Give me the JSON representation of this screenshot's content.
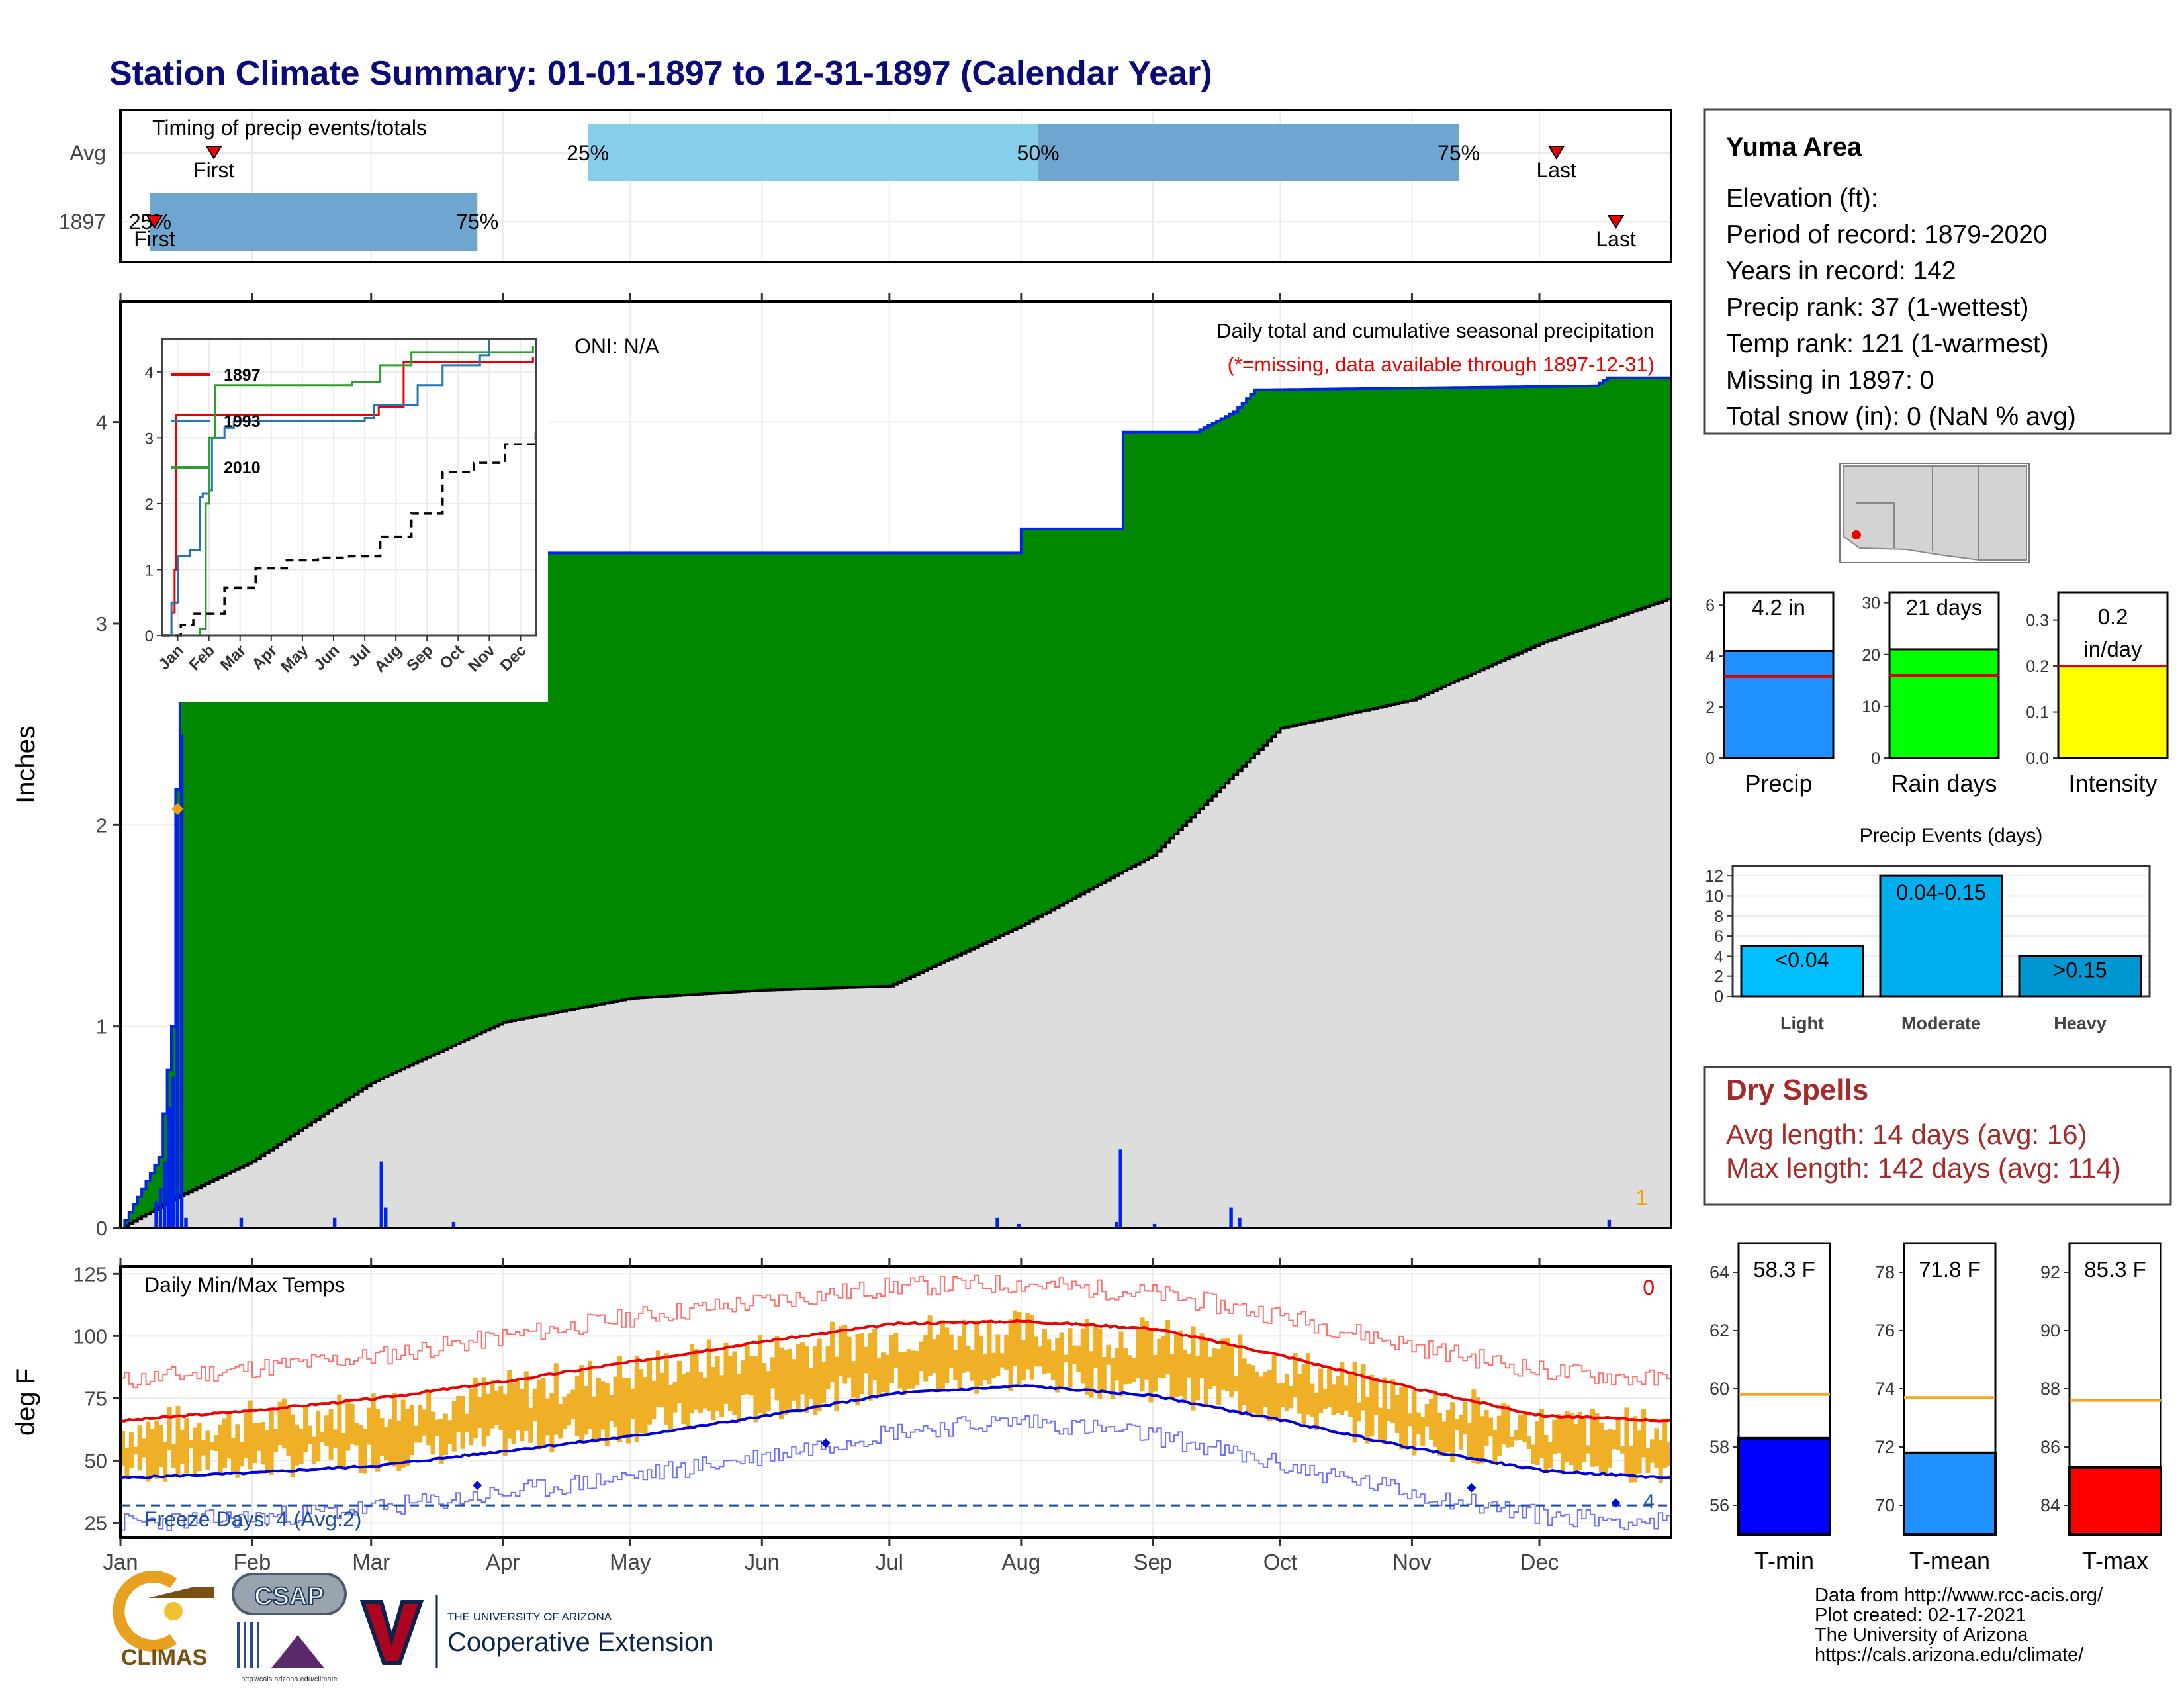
{
  "title": "Station Climate Summary: 01-01-1897 to 12-31-1897 (Calendar Year)",
  "timing": {
    "label": "Timing of precip events/totals",
    "rows": [
      "Avg",
      "1897"
    ],
    "avg": {
      "p25": "25%",
      "p50": "50%",
      "p75": "75%",
      "first": "First",
      "last": "Last"
    },
    "year": {
      "p25": "25%",
      "p50": "50%",
      "p75": "75%",
      "first": "First",
      "last": "Last"
    }
  },
  "precip_panel": {
    "ylabel": "Inches",
    "oni": "ONI: N/A",
    "caption": "Daily total and cumulative seasonal precipitation",
    "missing_note": "(*=missing, data available through 1897-12-31)",
    "count_label": "1",
    "yticks": [
      "0",
      "1",
      "2",
      "3",
      "4"
    ]
  },
  "inset": {
    "legend": [
      "1897",
      "1993",
      "2010"
    ],
    "yticks": [
      "0",
      "1",
      "2",
      "3",
      "4"
    ],
    "xticks": [
      "Jan",
      "Feb",
      "Mar",
      "Apr",
      "May",
      "Jun",
      "Jul",
      "Aug",
      "Sep",
      "Oct",
      "Nov",
      "Dec"
    ]
  },
  "temp_panel": {
    "label": "Daily Min/Max Temps",
    "ylabel": "deg F",
    "count_label": "0",
    "freeze": "Freeze Days: 4 (Avg:2)",
    "freeze_count": "4",
    "yticks": [
      "25",
      "50",
      "75",
      "100",
      "125"
    ]
  },
  "months": [
    "Jan",
    "Feb",
    "Mar",
    "Apr",
    "May",
    "Jun",
    "Jul",
    "Aug",
    "Sep",
    "Oct",
    "Nov",
    "Dec"
  ],
  "station": {
    "name": "Yuma Area",
    "lines": [
      "Elevation (ft):",
      "Period of record: 1879-2020",
      "Years in record: 142",
      "Precip rank: 37 (1-wettest)",
      "Temp rank: 121 (1-warmest)",
      "Missing in 1897: 0",
      "Total snow (in): 0 (NaN % avg)"
    ]
  },
  "mini_bars": [
    {
      "label": "Precip",
      "value_text": "4.2 in",
      "yticks": [
        "0",
        "2",
        "4",
        "6"
      ]
    },
    {
      "label": "Rain days",
      "value_text": "21 days",
      "yticks": [
        "0",
        "10",
        "20",
        "30"
      ]
    },
    {
      "label": "Intensity",
      "value_text": "0.2 in/day",
      "yticks": [
        "0.0",
        "0.1",
        "0.2",
        "0.3"
      ]
    }
  ],
  "precip_events": {
    "title": "Precip Events (days)",
    "yticks": [
      "0",
      "2",
      "4",
      "6",
      "8",
      "10",
      "12"
    ],
    "cats": [
      "Light",
      "Moderate",
      "Heavy"
    ],
    "bar_labels": [
      "<0.04",
      "0.04-0.15",
      ">0.15"
    ]
  },
  "dry_spells": {
    "title": "Dry Spells",
    "avg": "Avg length: 14 days (avg: 16)",
    "max": "Max length: 142 days (avg: 114)"
  },
  "temp_bars": [
    {
      "label": "T-min",
      "value_text": "58.3 F",
      "yticks": [
        "56",
        "58",
        "60",
        "62",
        "64"
      ]
    },
    {
      "label": "T-mean",
      "value_text": "71.8 F",
      "yticks": [
        "70",
        "72",
        "74",
        "76",
        "78"
      ]
    },
    {
      "label": "T-max",
      "value_text": "85.3 F",
      "yticks": [
        "84",
        "86",
        "88",
        "90",
        "92"
      ]
    }
  ],
  "footer": {
    "lines": [
      "Data from http://www.rcc-acis.org/",
      "Plot created: 02-17-2021",
      "The University of Arizona",
      "https://cals.arizona.edu/climate/"
    ],
    "logos": {
      "climas": "CLIMAS",
      "csap": "CSAP",
      "csap_url": "http://cals.arizona.edu/climate",
      "ua_small": "THE UNIVERSITY OF ARIZONA",
      "ua_big": "Cooperative Extension"
    }
  },
  "colors": {
    "title": "#0a0a7a",
    "green": "#008800",
    "gray": "#dddddd",
    "blue": "#0022ee",
    "light_blue": "#87ceeb",
    "mid_blue": "#6fa6cf",
    "tmax": "#ff0000",
    "tmin": "#0000ff",
    "orange": "#efb027",
    "dry": "#a52a2a",
    "brown": "#7a5010"
  },
  "chart_data": [
    {
      "type": "area",
      "name": "cumulative precipitation",
      "ylim": [
        0,
        4.6
      ],
      "xlim": [
        "1897-01-01",
        "1897-12-31"
      ],
      "ylabel": "Inches",
      "cumulative_1897": [
        {
          "x": "1897-01-01",
          "y": 0.0
        },
        {
          "x": "1897-01-10",
          "y": 0.35
        },
        {
          "x": "1897-01-13",
          "y": 1.0
        },
        {
          "x": "1897-01-15",
          "y": 3.35
        },
        {
          "x": "1897-07-31",
          "y": 3.35
        },
        {
          "x": "1897-08-01",
          "y": 3.47
        },
        {
          "x": "1897-08-24",
          "y": 3.47
        },
        {
          "x": "1897-08-25",
          "y": 3.95
        },
        {
          "x": "1897-09-11",
          "y": 3.95
        },
        {
          "x": "1897-09-20",
          "y": 4.05
        },
        {
          "x": "1897-09-25",
          "y": 4.16
        },
        {
          "x": "1897-12-14",
          "y": 4.18
        },
        {
          "x": "1897-12-17",
          "y": 4.22
        },
        {
          "x": "1897-12-31",
          "y": 4.22
        }
      ],
      "cumulative_avg": [
        {
          "x": "1897-01-01",
          "y": 0.0
        },
        {
          "x": "1897-01-15",
          "y": 0.16
        },
        {
          "x": "1897-02-01",
          "y": 0.33
        },
        {
          "x": "1897-03-01",
          "y": 0.72
        },
        {
          "x": "1897-04-01",
          "y": 1.02
        },
        {
          "x": "1897-05-01",
          "y": 1.14
        },
        {
          "x": "1897-06-01",
          "y": 1.18
        },
        {
          "x": "1897-07-01",
          "y": 1.2
        },
        {
          "x": "1897-08-01",
          "y": 1.5
        },
        {
          "x": "1897-09-01",
          "y": 1.85
        },
        {
          "x": "1897-10-01",
          "y": 2.48
        },
        {
          "x": "1897-11-01",
          "y": 2.62
        },
        {
          "x": "1897-12-01",
          "y": 2.9
        },
        {
          "x": "1897-12-31",
          "y": 3.12
        }
      ],
      "daily_1897": [
        {
          "x": "1897-01-09",
          "y": 0.13
        },
        {
          "x": "1897-01-10",
          "y": 0.2
        },
        {
          "x": "1897-01-11",
          "y": 0.33
        },
        {
          "x": "1897-01-12",
          "y": 0.6
        },
        {
          "x": "1897-01-13",
          "y": 0.75
        },
        {
          "x": "1897-01-14",
          "y": 2.08
        },
        {
          "x": "1897-01-15",
          "y": 2.45
        },
        {
          "x": "1897-01-16",
          "y": 0.05
        },
        {
          "x": "1897-01-29",
          "y": 0.05
        },
        {
          "x": "1897-02-20",
          "y": 0.05
        },
        {
          "x": "1897-03-03",
          "y": 0.33
        },
        {
          "x": "1897-03-04",
          "y": 0.1
        },
        {
          "x": "1897-03-20",
          "y": 0.03
        },
        {
          "x": "1897-07-26",
          "y": 0.05
        },
        {
          "x": "1897-07-31",
          "y": 0.02
        },
        {
          "x": "1897-08-23",
          "y": 0.03
        },
        {
          "x": "1897-08-24",
          "y": 0.39
        },
        {
          "x": "1897-09-01",
          "y": 0.02
        },
        {
          "x": "1897-09-19",
          "y": 0.1
        },
        {
          "x": "1897-09-21",
          "y": 0.05
        },
        {
          "x": "1897-12-17",
          "y": 0.04
        }
      ]
    },
    {
      "type": "line",
      "name": "cumulative precipitation (inset)",
      "ylim": [
        0,
        4.5
      ],
      "xlim": [
        "Jan",
        "Dec"
      ],
      "series": [
        {
          "name": "1897",
          "points": [
            [
              0,
              0
            ],
            [
              0.3,
              0.35
            ],
            [
              0.4,
              1.0
            ],
            [
              0.45,
              3.35
            ],
            [
              6.9,
              3.35
            ],
            [
              6.95,
              3.47
            ],
            [
              7.7,
              3.47
            ],
            [
              7.75,
              4.15
            ],
            [
              11.9,
              4.22
            ]
          ]
        },
        {
          "name": "1993",
          "points": [
            [
              0,
              0
            ],
            [
              0.3,
              0.5
            ],
            [
              0.5,
              1.2
            ],
            [
              0.9,
              1.3
            ],
            [
              1.2,
              2.1
            ],
            [
              1.3,
              2.15
            ],
            [
              1.5,
              2.2
            ],
            [
              1.6,
              3.0
            ],
            [
              2.0,
              3.15
            ],
            [
              2.3,
              3.25
            ],
            [
              6.5,
              3.3
            ],
            [
              6.8,
              3.5
            ],
            [
              8.2,
              3.8
            ],
            [
              9.0,
              4.1
            ],
            [
              10.2,
              4.25
            ],
            [
              10.5,
              4.5
            ]
          ]
        },
        {
          "name": "2010",
          "points": [
            [
              0,
              0
            ],
            [
              1.2,
              0.1
            ],
            [
              1.4,
              2.0
            ],
            [
              1.5,
              3.0
            ],
            [
              1.7,
              3.8
            ],
            [
              6.0,
              3.8
            ],
            [
              6.1,
              3.85
            ],
            [
              7.0,
              4.1
            ],
            [
              8.0,
              4.3
            ],
            [
              11.9,
              4.4
            ]
          ]
        },
        {
          "name": "avg",
          "points": [
            [
              0,
              0
            ],
            [
              0.6,
              0.16
            ],
            [
              1.0,
              0.33
            ],
            [
              2.0,
              0.72
            ],
            [
              3.0,
              1.02
            ],
            [
              4.0,
              1.14
            ],
            [
              5.0,
              1.18
            ],
            [
              6.0,
              1.2
            ],
            [
              7.0,
              1.5
            ],
            [
              8.0,
              1.85
            ],
            [
              9.0,
              2.48
            ],
            [
              10.0,
              2.62
            ],
            [
              11.0,
              2.9
            ],
            [
              11.99,
              3.12
            ]
          ]
        }
      ]
    },
    {
      "type": "line",
      "name": "Daily Min/Max Temps",
      "ylim": [
        19,
        128
      ],
      "ylabel": "deg F",
      "normal_max": [
        [
          0,
          66
        ],
        [
          1,
          70
        ],
        [
          2,
          75
        ],
        [
          3,
          82
        ],
        [
          4,
          90
        ],
        [
          5,
          98
        ],
        [
          6,
          105
        ],
        [
          7,
          106
        ],
        [
          8,
          103
        ],
        [
          9,
          92
        ],
        [
          10,
          79
        ],
        [
          11,
          68
        ],
        [
          12,
          66
        ]
      ],
      "normal_min": [
        [
          0,
          43
        ],
        [
          1,
          45
        ],
        [
          2,
          48
        ],
        [
          3,
          54
        ],
        [
          4,
          60
        ],
        [
          5,
          68
        ],
        [
          6,
          77
        ],
        [
          7,
          80
        ],
        [
          8,
          76
        ],
        [
          9,
          66
        ],
        [
          10,
          55
        ],
        [
          11,
          46
        ],
        [
          12,
          43
        ]
      ],
      "record_max": [
        [
          0,
          82
        ],
        [
          1,
          87
        ],
        [
          2,
          92
        ],
        [
          3,
          100
        ],
        [
          4,
          108
        ],
        [
          5,
          114
        ],
        [
          6,
          120
        ],
        [
          7,
          121
        ],
        [
          8,
          117
        ],
        [
          9,
          108
        ],
        [
          10,
          96
        ],
        [
          11,
          86
        ],
        [
          12,
          82
        ]
      ],
      "record_min": [
        [
          0,
          25
        ],
        [
          1,
          27
        ],
        [
          2,
          31
        ],
        [
          3,
          37
        ],
        [
          4,
          44
        ],
        [
          5,
          52
        ],
        [
          6,
          62
        ],
        [
          7,
          66
        ],
        [
          8,
          60
        ],
        [
          9,
          48
        ],
        [
          10,
          37
        ],
        [
          11,
          28
        ],
        [
          12,
          25
        ]
      ],
      "freeze_line": 32
    },
    {
      "type": "bar",
      "name": "totals",
      "categories": [
        "Precip",
        "Rain days",
        "Intensity"
      ],
      "values": [
        4.2,
        21,
        0.2
      ],
      "averages": [
        3.2,
        16,
        0.2
      ],
      "ylims": [
        [
          0,
          6.5
        ],
        [
          0,
          32
        ],
        [
          0,
          0.36
        ]
      ]
    },
    {
      "type": "bar",
      "name": "Precip Events (days)",
      "categories": [
        "Light",
        "Moderate",
        "Heavy"
      ],
      "values": [
        5,
        12,
        4
      ],
      "ylim": [
        0,
        13
      ]
    },
    {
      "type": "bar",
      "name": "mean temperatures",
      "categories": [
        "T-min",
        "T-mean",
        "T-max"
      ],
      "values": [
        58.3,
        71.8,
        85.3
      ],
      "averages": [
        59.8,
        73.7,
        87.6
      ],
      "ylims": [
        [
          55,
          65
        ],
        [
          69,
          79
        ],
        [
          83,
          93
        ]
      ]
    }
  ]
}
